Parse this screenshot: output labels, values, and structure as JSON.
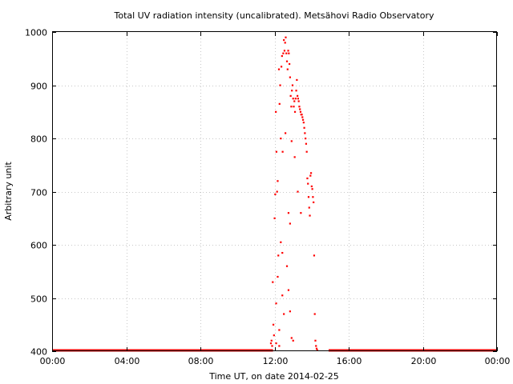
{
  "chart_data": {
    "type": "scatter",
    "title": "Total UV radiation intensity (uncalibrated). Metsähovi Radio Observatory",
    "xlabel": "Time UT, on date 2014-02-25",
    "ylabel": "Arbitrary unit",
    "xlim": [
      "00:00",
      "24:00"
    ],
    "ylim": [
      400,
      1000
    ],
    "x_ticks": [
      "00:00",
      "04:00",
      "08:00",
      "12:00",
      "16:00",
      "20:00",
      "00:00"
    ],
    "y_ticks": [
      400,
      500,
      600,
      700,
      800,
      900,
      1000
    ],
    "grid": true,
    "color": "#ff0000",
    "baseline": {
      "value": 400,
      "segments": [
        [
          "00:00",
          "11:55"
        ],
        [
          "14:55",
          "24:00"
        ]
      ]
    },
    "points": [
      {
        "x": "11:48",
        "y": 415
      },
      {
        "x": "11:50",
        "y": 420
      },
      {
        "x": "11:52",
        "y": 410
      },
      {
        "x": "11:54",
        "y": 530
      },
      {
        "x": "11:56",
        "y": 450
      },
      {
        "x": "11:58",
        "y": 430
      },
      {
        "x": "12:00",
        "y": 650
      },
      {
        "x": "12:02",
        "y": 695
      },
      {
        "x": "12:04",
        "y": 850
      },
      {
        "x": "12:06",
        "y": 775
      },
      {
        "x": "12:08",
        "y": 700
      },
      {
        "x": "12:10",
        "y": 720
      },
      {
        "x": "12:12",
        "y": 580
      },
      {
        "x": "12:14",
        "y": 930
      },
      {
        "x": "12:16",
        "y": 865
      },
      {
        "x": "12:18",
        "y": 900
      },
      {
        "x": "12:20",
        "y": 800
      },
      {
        "x": "12:22",
        "y": 935
      },
      {
        "x": "12:24",
        "y": 955
      },
      {
        "x": "12:26",
        "y": 775
      },
      {
        "x": "12:28",
        "y": 960
      },
      {
        "x": "12:30",
        "y": 985
      },
      {
        "x": "12:32",
        "y": 965
      },
      {
        "x": "12:34",
        "y": 980
      },
      {
        "x": "12:36",
        "y": 990
      },
      {
        "x": "12:38",
        "y": 960
      },
      {
        "x": "12:40",
        "y": 945
      },
      {
        "x": "12:42",
        "y": 930
      },
      {
        "x": "12:44",
        "y": 965
      },
      {
        "x": "12:46",
        "y": 960
      },
      {
        "x": "12:48",
        "y": 940
      },
      {
        "x": "12:50",
        "y": 915
      },
      {
        "x": "12:52",
        "y": 880
      },
      {
        "x": "12:54",
        "y": 860
      },
      {
        "x": "12:56",
        "y": 890
      },
      {
        "x": "12:58",
        "y": 900
      },
      {
        "x": "13:00",
        "y": 875
      },
      {
        "x": "13:02",
        "y": 860
      },
      {
        "x": "13:04",
        "y": 870
      },
      {
        "x": "13:06",
        "y": 850
      },
      {
        "x": "13:08",
        "y": 875
      },
      {
        "x": "13:10",
        "y": 890
      },
      {
        "x": "13:12",
        "y": 910
      },
      {
        "x": "13:14",
        "y": 880
      },
      {
        "x": "13:16",
        "y": 875
      },
      {
        "x": "13:18",
        "y": 870
      },
      {
        "x": "13:20",
        "y": 860
      },
      {
        "x": "13:22",
        "y": 855
      },
      {
        "x": "13:24",
        "y": 850
      },
      {
        "x": "13:26",
        "y": 845
      },
      {
        "x": "13:28",
        "y": 845
      },
      {
        "x": "13:30",
        "y": 840
      },
      {
        "x": "13:32",
        "y": 835
      },
      {
        "x": "13:34",
        "y": 830
      },
      {
        "x": "13:36",
        "y": 820
      },
      {
        "x": "13:38",
        "y": 810
      },
      {
        "x": "13:40",
        "y": 800
      },
      {
        "x": "13:42",
        "y": 790
      },
      {
        "x": "13:44",
        "y": 775
      },
      {
        "x": "13:46",
        "y": 725
      },
      {
        "x": "13:48",
        "y": 715
      },
      {
        "x": "13:50",
        "y": 690
      },
      {
        "x": "13:52",
        "y": 670
      },
      {
        "x": "13:54",
        "y": 655
      },
      {
        "x": "13:56",
        "y": 730
      },
      {
        "x": "13:58",
        "y": 735
      },
      {
        "x": "14:00",
        "y": 710
      },
      {
        "x": "14:02",
        "y": 705
      },
      {
        "x": "14:04",
        "y": 690
      },
      {
        "x": "14:06",
        "y": 680
      },
      {
        "x": "14:08",
        "y": 580
      },
      {
        "x": "14:10",
        "y": 470
      },
      {
        "x": "14:12",
        "y": 420
      },
      {
        "x": "14:14",
        "y": 410
      },
      {
        "x": "14:16",
        "y": 405
      },
      {
        "x": "14:18",
        "y": 402
      },
      {
        "x": "12:05",
        "y": 415
      },
      {
        "x": "12:15",
        "y": 410
      },
      {
        "x": "12:35",
        "y": 810
      },
      {
        "x": "12:45",
        "y": 660
      },
      {
        "x": "12:50",
        "y": 640
      },
      {
        "x": "12:55",
        "y": 425
      },
      {
        "x": "13:00",
        "y": 420
      },
      {
        "x": "12:20",
        "y": 605
      },
      {
        "x": "12:25",
        "y": 505
      },
      {
        "x": "12:30",
        "y": 470
      },
      {
        "x": "12:10",
        "y": 540
      },
      {
        "x": "12:40",
        "y": 560
      },
      {
        "x": "12:45",
        "y": 515
      },
      {
        "x": "12:50",
        "y": 475
      },
      {
        "x": "12:05",
        "y": 490
      },
      {
        "x": "12:15",
        "y": 440
      },
      {
        "x": "12:25",
        "y": 585
      },
      {
        "x": "12:55",
        "y": 795
      },
      {
        "x": "13:05",
        "y": 765
      },
      {
        "x": "13:15",
        "y": 700
      },
      {
        "x": "13:25",
        "y": 660
      }
    ]
  }
}
